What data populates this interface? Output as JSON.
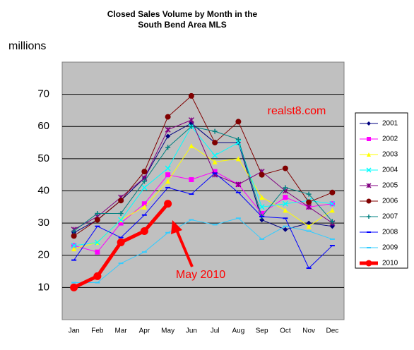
{
  "chart_data": {
    "type": "line",
    "title": [
      "Closed Sales Volume by Month in the",
      "South Bend Area MLS"
    ],
    "y_label": "millions",
    "annotations": [
      "realst8.com",
      "May 2010"
    ],
    "categories": [
      "Jan",
      "Feb",
      "Mar",
      "Apr",
      "May",
      "Jun",
      "Jul",
      "Aug",
      "Sep",
      "Oct",
      "Nov",
      "Dec"
    ],
    "ylim": [
      0,
      80
    ],
    "yticks": [
      10,
      20,
      30,
      40,
      50,
      60,
      70
    ],
    "grid": true,
    "series": [
      {
        "name": "2001",
        "color": "#000080",
        "marker": "diamond",
        "values": [
          27,
          31,
          37,
          44,
          57,
          61,
          55,
          55,
          31,
          28,
          30,
          29
        ]
      },
      {
        "name": "2002",
        "color": "#ff00ff",
        "marker": "square",
        "values": [
          23,
          21,
          30,
          36,
          45,
          43.5,
          46,
          42,
          33,
          38,
          35,
          36
        ]
      },
      {
        "name": "2003",
        "color": "#ffff00",
        "marker": "triangle",
        "values": [
          22,
          24,
          31,
          35,
          43,
          54,
          49,
          50,
          38,
          34,
          29,
          34
        ]
      },
      {
        "name": "2004",
        "color": "#00ffff",
        "marker": "x",
        "values": [
          23,
          24,
          31,
          41,
          47,
          60,
          51,
          55,
          35,
          36,
          37,
          36
        ]
      },
      {
        "name": "2005",
        "color": "#800080",
        "marker": "star",
        "values": [
          28,
          32,
          38,
          44,
          59,
          62,
          45,
          42,
          46,
          40,
          35,
          30
        ]
      },
      {
        "name": "2006",
        "color": "#800000",
        "marker": "circle",
        "values": [
          26,
          31,
          37,
          46,
          63,
          69.5,
          55,
          61.5,
          45,
          47,
          36.5,
          39.5
        ]
      },
      {
        "name": "2007",
        "color": "#008080",
        "marker": "plus",
        "values": [
          27.5,
          33,
          33,
          43,
          53.5,
          60,
          58.5,
          56,
          32,
          41,
          39,
          30.5
        ]
      },
      {
        "name": "2008",
        "color": "#0000ff",
        "marker": "dash",
        "values": [
          18.5,
          29,
          25.5,
          32.5,
          41,
          39,
          45.5,
          39.5,
          32,
          31.5,
          16,
          23
        ]
      },
      {
        "name": "2009",
        "color": "#33ccff",
        "marker": "dash",
        "values": [
          11.5,
          11.5,
          17.5,
          21,
          27,
          31,
          29.5,
          31.5,
          25,
          29,
          27.5,
          25
        ]
      },
      {
        "name": "2010",
        "color": "#ff0000",
        "marker": "circle",
        "width": 5,
        "values": [
          10,
          13.5,
          24,
          27.5,
          36,
          null,
          null,
          null,
          null,
          null,
          null,
          null
        ]
      }
    ]
  }
}
